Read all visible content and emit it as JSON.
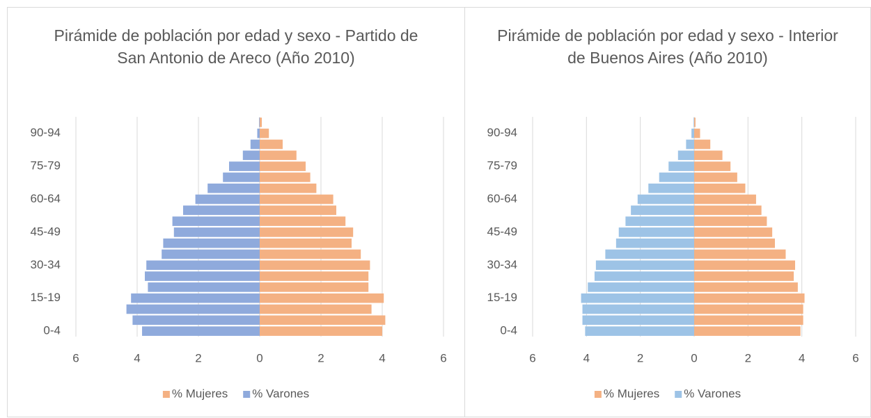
{
  "chart_data": [
    {
      "type": "bar",
      "orientation": "horizontal",
      "title": "Pirámide de población por edad y sexo - Partido de San Antonio de Areco (Año 2010)",
      "categories": [
        "0-4",
        null,
        null,
        "15-19",
        null,
        null,
        "30-34",
        null,
        null,
        "45-49",
        null,
        null,
        "60-64",
        null,
        null,
        "75-79",
        null,
        null,
        "90-94",
        null
      ],
      "series": [
        {
          "name": "% Mujeres",
          "color": "#f4b183",
          "values": [
            4.0,
            4.1,
            3.65,
            4.05,
            3.55,
            3.55,
            3.6,
            3.3,
            3.0,
            3.05,
            2.8,
            2.5,
            2.4,
            1.85,
            1.65,
            1.5,
            1.2,
            0.75,
            0.3,
            0.07
          ]
        },
        {
          "name": "% Varones",
          "color": "#8faadc",
          "values": [
            -3.84,
            -4.15,
            -4.35,
            -4.2,
            -3.65,
            -3.75,
            -3.7,
            -3.2,
            -3.15,
            -2.8,
            -2.85,
            -2.5,
            -2.1,
            -1.7,
            -1.2,
            -1.0,
            -0.55,
            -0.3,
            -0.08,
            -0.02
          ]
        }
      ],
      "xlim": [
        -6,
        6
      ],
      "xticks": [
        {
          "value": -6,
          "label": "6"
        },
        {
          "value": -4,
          "label": "4"
        },
        {
          "value": -2,
          "label": "2"
        },
        0,
        2,
        4,
        6
      ],
      "grid": true,
      "legend": "bottom"
    },
    {
      "type": "bar",
      "orientation": "horizontal",
      "title": "Pirámide de población por edad y sexo - Interior de Buenos Aires (Año 2010)",
      "categories": [
        "0-4",
        null,
        null,
        "15-19",
        null,
        null,
        "30-34",
        null,
        null,
        "45-49",
        null,
        null,
        "60-64",
        null,
        null,
        "75-79",
        null,
        null,
        "90-94",
        null
      ],
      "series": [
        {
          "name": "% Mujeres",
          "color": "#f4b183",
          "values": [
            3.95,
            4.05,
            4.05,
            4.1,
            3.85,
            3.7,
            3.75,
            3.4,
            3.0,
            2.9,
            2.7,
            2.5,
            2.3,
            1.9,
            1.6,
            1.35,
            1.05,
            0.6,
            0.22,
            0.05
          ]
        },
        {
          "name": "% Varones",
          "color": "#9dc3e6",
          "values": [
            -4.05,
            -4.15,
            -4.15,
            -4.2,
            -3.95,
            -3.7,
            -3.65,
            -3.3,
            -2.9,
            -2.8,
            -2.55,
            -2.35,
            -2.1,
            -1.7,
            -1.3,
            -0.95,
            -0.6,
            -0.3,
            -0.1,
            -0.02
          ]
        }
      ],
      "xlim": [
        -6,
        6
      ],
      "xticks": [
        {
          "value": -6,
          "label": "6"
        },
        {
          "value": -4,
          "label": "4"
        },
        {
          "value": -2,
          "label": "2"
        },
        0,
        2,
        4,
        6
      ],
      "grid": true,
      "legend": "bottom"
    }
  ]
}
